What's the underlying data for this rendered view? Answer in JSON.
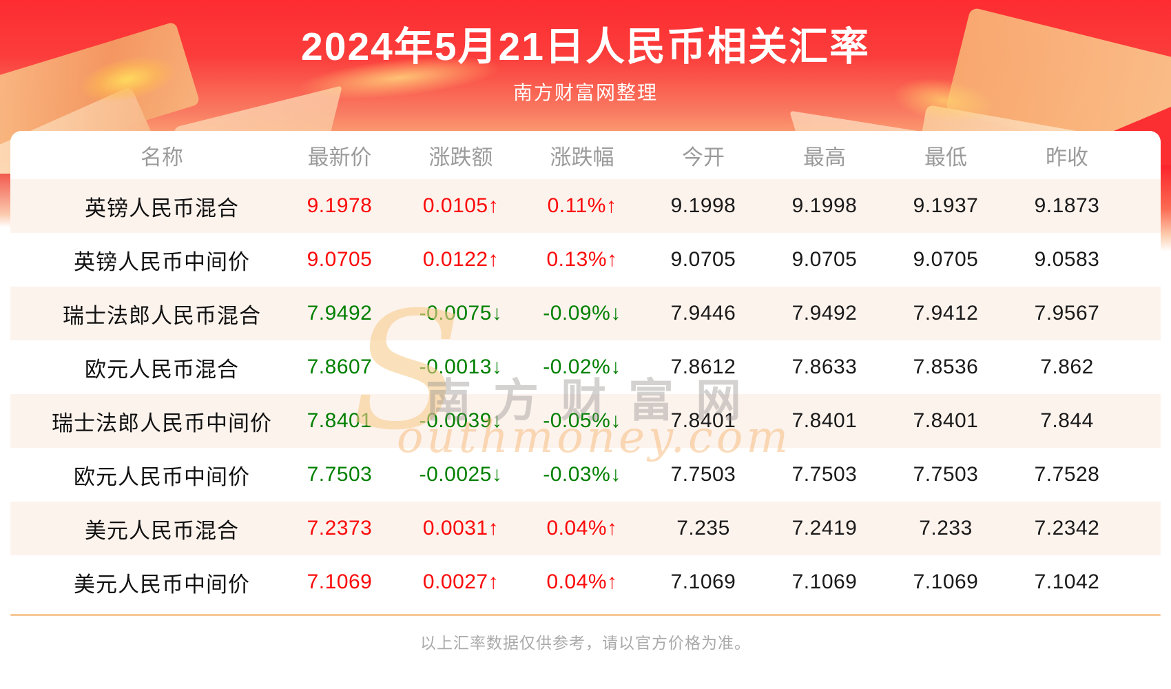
{
  "header": {
    "title": "2024年5月21日人民币相关汇率",
    "source": "南方财富网整理"
  },
  "watermark": {
    "s": "S",
    "cn": "南方财富网",
    "en": "outhmoney.com"
  },
  "footer": {
    "note": "以上汇率数据仅供参考，请以官方价格为准。"
  },
  "colors": {
    "up": "#fb0a0a",
    "down": "#008000",
    "banner_top": "#fd2c31",
    "banner_bottom": "#fdd09b",
    "row_alt": "#fdf3ed",
    "divider": "#f7c897"
  },
  "chart_data": {
    "type": "table",
    "title": "2024年5月21日人民币相关汇率",
    "columns": [
      "名称",
      "最新价",
      "涨跌额",
      "涨跌幅",
      "今开",
      "最高",
      "最低",
      "昨收"
    ],
    "rows": [
      {
        "name": "英镑人民币混合",
        "latest": "9.1978",
        "change": "0.0105",
        "change_pct": "0.11%",
        "arrow": "↑",
        "direction": "up",
        "open": "9.1998",
        "high": "9.1998",
        "low": "9.1937",
        "prev_close": "9.1873"
      },
      {
        "name": "英镑人民币中间价",
        "latest": "9.0705",
        "change": "0.0122",
        "change_pct": "0.13%",
        "arrow": "↑",
        "direction": "up",
        "open": "9.0705",
        "high": "9.0705",
        "low": "9.0705",
        "prev_close": "9.0583"
      },
      {
        "name": "瑞士法郎人民币混合",
        "latest": "7.9492",
        "change": "-0.0075",
        "change_pct": "-0.09%",
        "arrow": "↓",
        "direction": "down",
        "open": "7.9446",
        "high": "7.9492",
        "low": "7.9412",
        "prev_close": "7.9567"
      },
      {
        "name": "欧元人民币混合",
        "latest": "7.8607",
        "change": "-0.0013",
        "change_pct": "-0.02%",
        "arrow": "↓",
        "direction": "down",
        "open": "7.8612",
        "high": "7.8633",
        "low": "7.8536",
        "prev_close": "7.862"
      },
      {
        "name": "瑞士法郎人民币中间价",
        "latest": "7.8401",
        "change": "-0.0039",
        "change_pct": "-0.05%",
        "arrow": "↓",
        "direction": "down",
        "open": "7.8401",
        "high": "7.8401",
        "low": "7.8401",
        "prev_close": "7.844"
      },
      {
        "name": "欧元人民币中间价",
        "latest": "7.7503",
        "change": "-0.0025",
        "change_pct": "-0.03%",
        "arrow": "↓",
        "direction": "down",
        "open": "7.7503",
        "high": "7.7503",
        "low": "7.7503",
        "prev_close": "7.7528"
      },
      {
        "name": "美元人民币混合",
        "latest": "7.2373",
        "change": "0.0031",
        "change_pct": "0.04%",
        "arrow": "↑",
        "direction": "up",
        "open": "7.235",
        "high": "7.2419",
        "low": "7.233",
        "prev_close": "7.2342"
      },
      {
        "name": "美元人民币中间价",
        "latest": "7.1069",
        "change": "0.0027",
        "change_pct": "0.04%",
        "arrow": "↑",
        "direction": "up",
        "open": "7.1069",
        "high": "7.1069",
        "low": "7.1069",
        "prev_close": "7.1042"
      }
    ]
  }
}
